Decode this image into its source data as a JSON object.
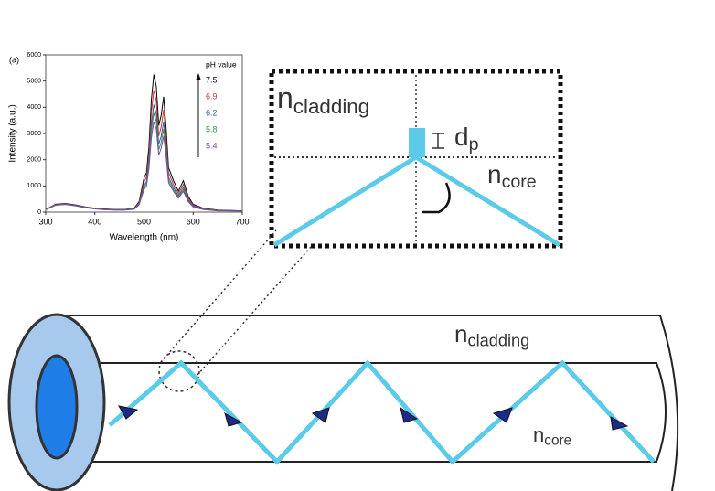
{
  "panel_label": "(a)",
  "chart_data": {
    "type": "line",
    "xlabel": "Wavelength (nm)",
    "ylabel": "Intensity (a.u.)",
    "legend_title": "pH value",
    "xlim": [
      300,
      700
    ],
    "xticks": [
      300,
      400,
      500,
      600,
      700
    ],
    "ylim": [
      0,
      6000
    ],
    "yticks": [
      0,
      1000,
      2000,
      3000,
      4000,
      5000,
      6000
    ],
    "x": [
      300,
      320,
      340,
      360,
      380,
      400,
      420,
      440,
      460,
      480,
      490,
      500,
      505,
      510,
      515,
      520,
      525,
      530,
      535,
      540,
      545,
      550,
      560,
      570,
      580,
      590,
      600,
      620,
      650,
      700
    ],
    "series": [
      {
        "name": "7.5",
        "color": "#000000",
        "values": [
          100,
          300,
          330,
          280,
          200,
          150,
          120,
          100,
          100,
          150,
          400,
          1300,
          1500,
          2500,
          4300,
          5250,
          4800,
          3300,
          3700,
          4400,
          3200,
          1700,
          1200,
          800,
          1200,
          600,
          300,
          150,
          80,
          50
        ]
      },
      {
        "name": "6.9",
        "color": "#c8373a",
        "values": [
          100,
          290,
          320,
          270,
          190,
          140,
          110,
          90,
          90,
          140,
          360,
          1150,
          1330,
          2200,
          3800,
          4650,
          4250,
          2900,
          3250,
          3900,
          2800,
          1500,
          1060,
          700,
          1060,
          530,
          270,
          130,
          70,
          50
        ]
      },
      {
        "name": "6.2",
        "color": "#3a5a9a",
        "values": [
          100,
          280,
          310,
          260,
          180,
          130,
          100,
          90,
          90,
          130,
          330,
          1020,
          1170,
          1950,
          3350,
          4100,
          3750,
          2600,
          2900,
          3450,
          2500,
          1330,
          940,
          620,
          940,
          470,
          240,
          120,
          60,
          50
        ]
      },
      {
        "name": "5.8",
        "color": "#2e9a4a",
        "values": [
          90,
          270,
          300,
          250,
          180,
          130,
          100,
          80,
          80,
          120,
          300,
          940,
          1080,
          1800,
          3100,
          3780,
          3460,
          2380,
          2660,
          3170,
          2300,
          1220,
          860,
          580,
          860,
          430,
          220,
          110,
          60,
          40
        ]
      },
      {
        "name": "5.4",
        "color": "#7a4aa8",
        "values": [
          90,
          260,
          290,
          240,
          170,
          120,
          90,
          80,
          80,
          110,
          280,
          860,
          990,
          1650,
          2840,
          3450,
          3170,
          2180,
          2440,
          2900,
          2110,
          1120,
          790,
          530,
          790,
          400,
          200,
          100,
          50,
          40
        ]
      }
    ]
  },
  "labels": [
    {
      "symbol": "n",
      "subscript": "cladding"
    },
    {
      "symbol": "d",
      "subscript": "p"
    },
    {
      "symbol": "n",
      "subscript": "core"
    },
    {
      "symbol": "n",
      "subscript": "cladding"
    },
    {
      "symbol": "n",
      "subscript": "core"
    }
  ]
}
